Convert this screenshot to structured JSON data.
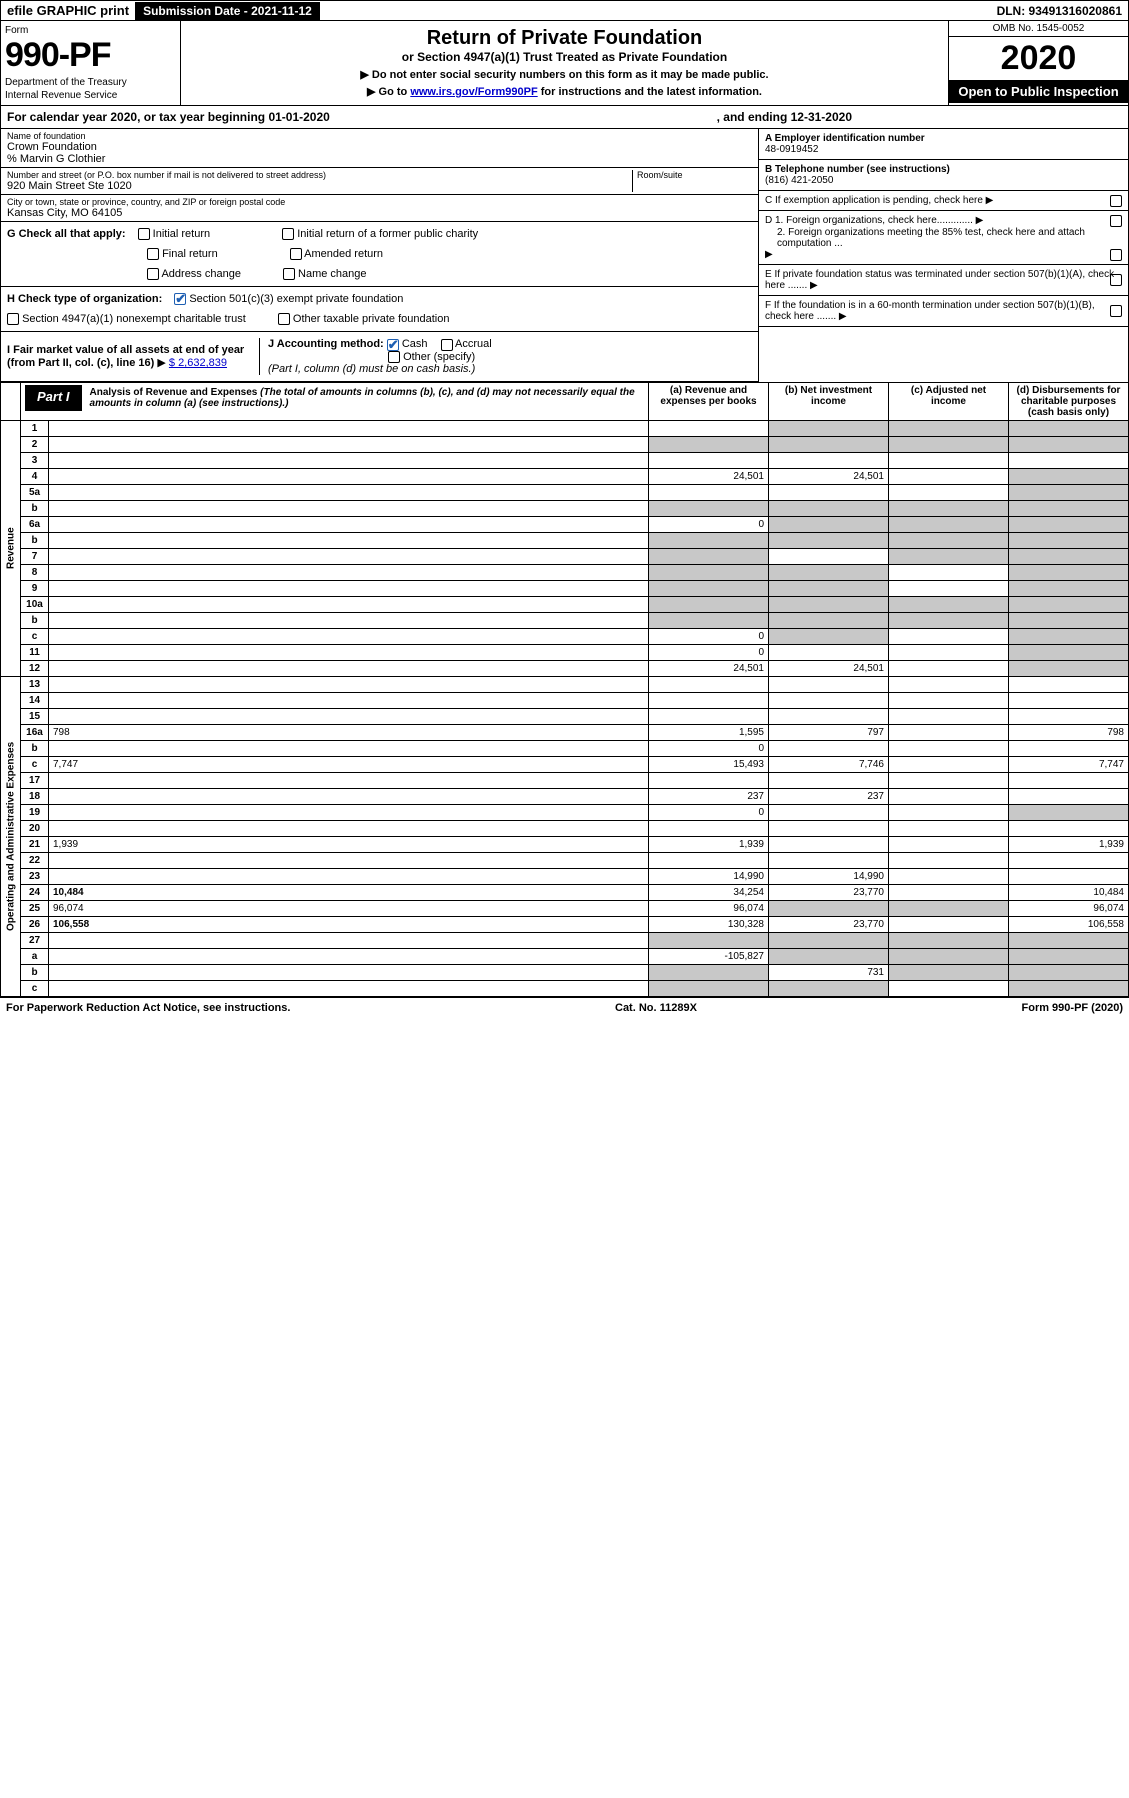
{
  "topbar": {
    "efile": "efile GRAPHIC print",
    "submission": "Submission Date - 2021-11-12",
    "dln": "DLN: 93491316020861"
  },
  "header": {
    "form": "Form",
    "number": "990-PF",
    "dept1": "Department of the Treasury",
    "dept2": "Internal Revenue Service",
    "title": "Return of Private Foundation",
    "subtitle": "or Section 4947(a)(1) Trust Treated as Private Foundation",
    "note1": "▶ Do not enter social security numbers on this form as it may be made public.",
    "note2_pre": "▶ Go to ",
    "note2_link": "www.irs.gov/Form990PF",
    "note2_post": " for instructions and the latest information.",
    "omb": "OMB No. 1545-0052",
    "year": "2020",
    "open": "Open to Public Inspection"
  },
  "calrow": {
    "pre": "For calendar year 2020, or tax year beginning 01-01-2020",
    "post": ", and ending 12-31-2020"
  },
  "foundation": {
    "name_lab": "Name of foundation",
    "name": "Crown Foundation",
    "care": "% Marvin G Clothier",
    "addr_lab": "Number and street (or P.O. box number if mail is not delivered to street address)",
    "addr": "920 Main Street Ste 1020",
    "room_lab": "Room/suite",
    "city_lab": "City or town, state or province, country, and ZIP or foreign postal code",
    "city": "Kansas City, MO  64105"
  },
  "right": {
    "A_lab": "A Employer identification number",
    "A": "48-0919452",
    "B_lab": "B Telephone number (see instructions)",
    "B": "(816) 421-2050",
    "C": "C If exemption application is pending, check here",
    "D1": "D 1. Foreign organizations, check here.............",
    "D2": "2. Foreign organizations meeting the 85% test, check here and attach computation ...",
    "E": "E If private foundation status was terminated under section 507(b)(1)(A), check here .......",
    "F": "F If the foundation is in a 60-month termination under section 507(b)(1)(B), check here ......."
  },
  "G": {
    "label": "G Check all that apply:",
    "opts": [
      "Initial return",
      "Final return",
      "Address change",
      "Initial return of a former public charity",
      "Amended return",
      "Name change"
    ]
  },
  "H": {
    "label": "H Check type of organization:",
    "o1": "Section 501(c)(3) exempt private foundation",
    "o2": "Section 4947(a)(1) nonexempt charitable trust",
    "o3": "Other taxable private foundation"
  },
  "I": {
    "label": "I Fair market value of all assets at end of year (from Part II, col. (c), line 16)",
    "amt": "$  2,632,839"
  },
  "J": {
    "label": "J Accounting method:",
    "cash": "Cash",
    "accrual": "Accrual",
    "other": "Other (specify)",
    "note": "(Part I, column (d) must be on cash basis.)"
  },
  "part1": {
    "tab": "Part I",
    "title": "Analysis of Revenue and Expenses",
    "note": "(The total of amounts in columns (b), (c), and (d) may not necessarily equal the amounts in column (a) (see instructions).)",
    "cols": {
      "a": "(a) Revenue and expenses per books",
      "b": "(b) Net investment income",
      "c": "(c) Adjusted net income",
      "d": "(d) Disbursements for charitable purposes (cash basis only)"
    }
  },
  "sections": {
    "rev": "Revenue",
    "oae": "Operating and Administrative Expenses"
  },
  "rows": [
    {
      "n": "1",
      "d": "",
      "a": "",
      "b": "",
      "c": "",
      "dGrey": true,
      "bGrey": true,
      "cGrey": true
    },
    {
      "n": "2",
      "d": "",
      "a": "",
      "b": "",
      "c": "",
      "allGrey": true
    },
    {
      "n": "3",
      "d": "",
      "a": "",
      "b": "",
      "c": ""
    },
    {
      "n": "4",
      "d": "",
      "a": "24,501",
      "b": "24,501",
      "c": "",
      "dGrey": true
    },
    {
      "n": "5a",
      "d": "",
      "a": "",
      "b": "",
      "c": "",
      "dGrey": true
    },
    {
      "n": "b",
      "d": "",
      "a": "",
      "b": "",
      "c": "",
      "allGrey": true,
      "box": true
    },
    {
      "n": "6a",
      "d": "",
      "a": "0",
      "b": "",
      "c": "",
      "bGrey": true,
      "cGrey": true,
      "dGrey": true
    },
    {
      "n": "b",
      "d": "",
      "a": "",
      "b": "",
      "c": "",
      "allGrey": true,
      "box": true
    },
    {
      "n": "7",
      "d": "",
      "a": "",
      "b": "",
      "c": "",
      "aGrey": true,
      "cGrey": true,
      "dGrey": true
    },
    {
      "n": "8",
      "d": "",
      "a": "",
      "b": "",
      "c": "",
      "aGrey": true,
      "bGrey": true,
      "dGrey": true
    },
    {
      "n": "9",
      "d": "",
      "a": "",
      "b": "",
      "c": "",
      "aGrey": true,
      "bGrey": true,
      "dGrey": true
    },
    {
      "n": "10a",
      "d": "",
      "a": "",
      "b": "",
      "c": "",
      "allGrey": true,
      "box": true
    },
    {
      "n": "b",
      "d": "",
      "a": "",
      "b": "",
      "c": "",
      "allGrey": true,
      "box": true
    },
    {
      "n": "c",
      "d": "",
      "a": "0",
      "b": "",
      "c": "",
      "bGrey": true,
      "dGrey": true
    },
    {
      "n": "11",
      "d": "",
      "a": "0",
      "b": "",
      "c": "",
      "dGrey": true
    },
    {
      "n": "12",
      "d": "",
      "a": "24,501",
      "b": "24,501",
      "c": "",
      "dGrey": true,
      "bold": true
    },
    {
      "n": "13",
      "d": "",
      "a": "",
      "b": "",
      "c": ""
    },
    {
      "n": "14",
      "d": "",
      "a": "",
      "b": "",
      "c": ""
    },
    {
      "n": "15",
      "d": "",
      "a": "",
      "b": "",
      "c": ""
    },
    {
      "n": "16a",
      "d": "798",
      "a": "1,595",
      "b": "797",
      "c": ""
    },
    {
      "n": "b",
      "d": "",
      "a": "0",
      "b": "",
      "c": ""
    },
    {
      "n": "c",
      "d": "7,747",
      "a": "15,493",
      "b": "7,746",
      "c": ""
    },
    {
      "n": "17",
      "d": "",
      "a": "",
      "b": "",
      "c": ""
    },
    {
      "n": "18",
      "d": "",
      "a": "237",
      "b": "237",
      "c": ""
    },
    {
      "n": "19",
      "d": "",
      "a": "0",
      "b": "",
      "c": "",
      "dGrey": true
    },
    {
      "n": "20",
      "d": "",
      "a": "",
      "b": "",
      "c": ""
    },
    {
      "n": "21",
      "d": "1,939",
      "a": "1,939",
      "b": "",
      "c": ""
    },
    {
      "n": "22",
      "d": "",
      "a": "",
      "b": "",
      "c": ""
    },
    {
      "n": "23",
      "d": "",
      "a": "14,990",
      "b": "14,990",
      "c": ""
    },
    {
      "n": "24",
      "d": "10,484",
      "a": "34,254",
      "b": "23,770",
      "c": "",
      "bold": true
    },
    {
      "n": "25",
      "d": "96,074",
      "a": "96,074",
      "b": "",
      "c": "",
      "bGrey": true,
      "cGrey": true
    },
    {
      "n": "26",
      "d": "106,558",
      "a": "130,328",
      "b": "23,770",
      "c": "",
      "bold": true
    },
    {
      "n": "27",
      "d": "",
      "a": "",
      "b": "",
      "c": "",
      "allGrey": true
    },
    {
      "n": "a",
      "d": "",
      "a": "-105,827",
      "b": "",
      "c": "",
      "bGrey": true,
      "cGrey": true,
      "dGrey": true,
      "bold": true
    },
    {
      "n": "b",
      "d": "",
      "a": "",
      "b": "731",
      "c": "",
      "aGrey": true,
      "cGrey": true,
      "dGrey": true,
      "bold": true
    },
    {
      "n": "c",
      "d": "",
      "a": "",
      "b": "",
      "c": "",
      "aGrey": true,
      "bGrey": true,
      "dGrey": true,
      "bold": true
    }
  ],
  "footer": {
    "left": "For Paperwork Reduction Act Notice, see instructions.",
    "mid": "Cat. No. 11289X",
    "right": "Form 990-PF (2020)"
  }
}
